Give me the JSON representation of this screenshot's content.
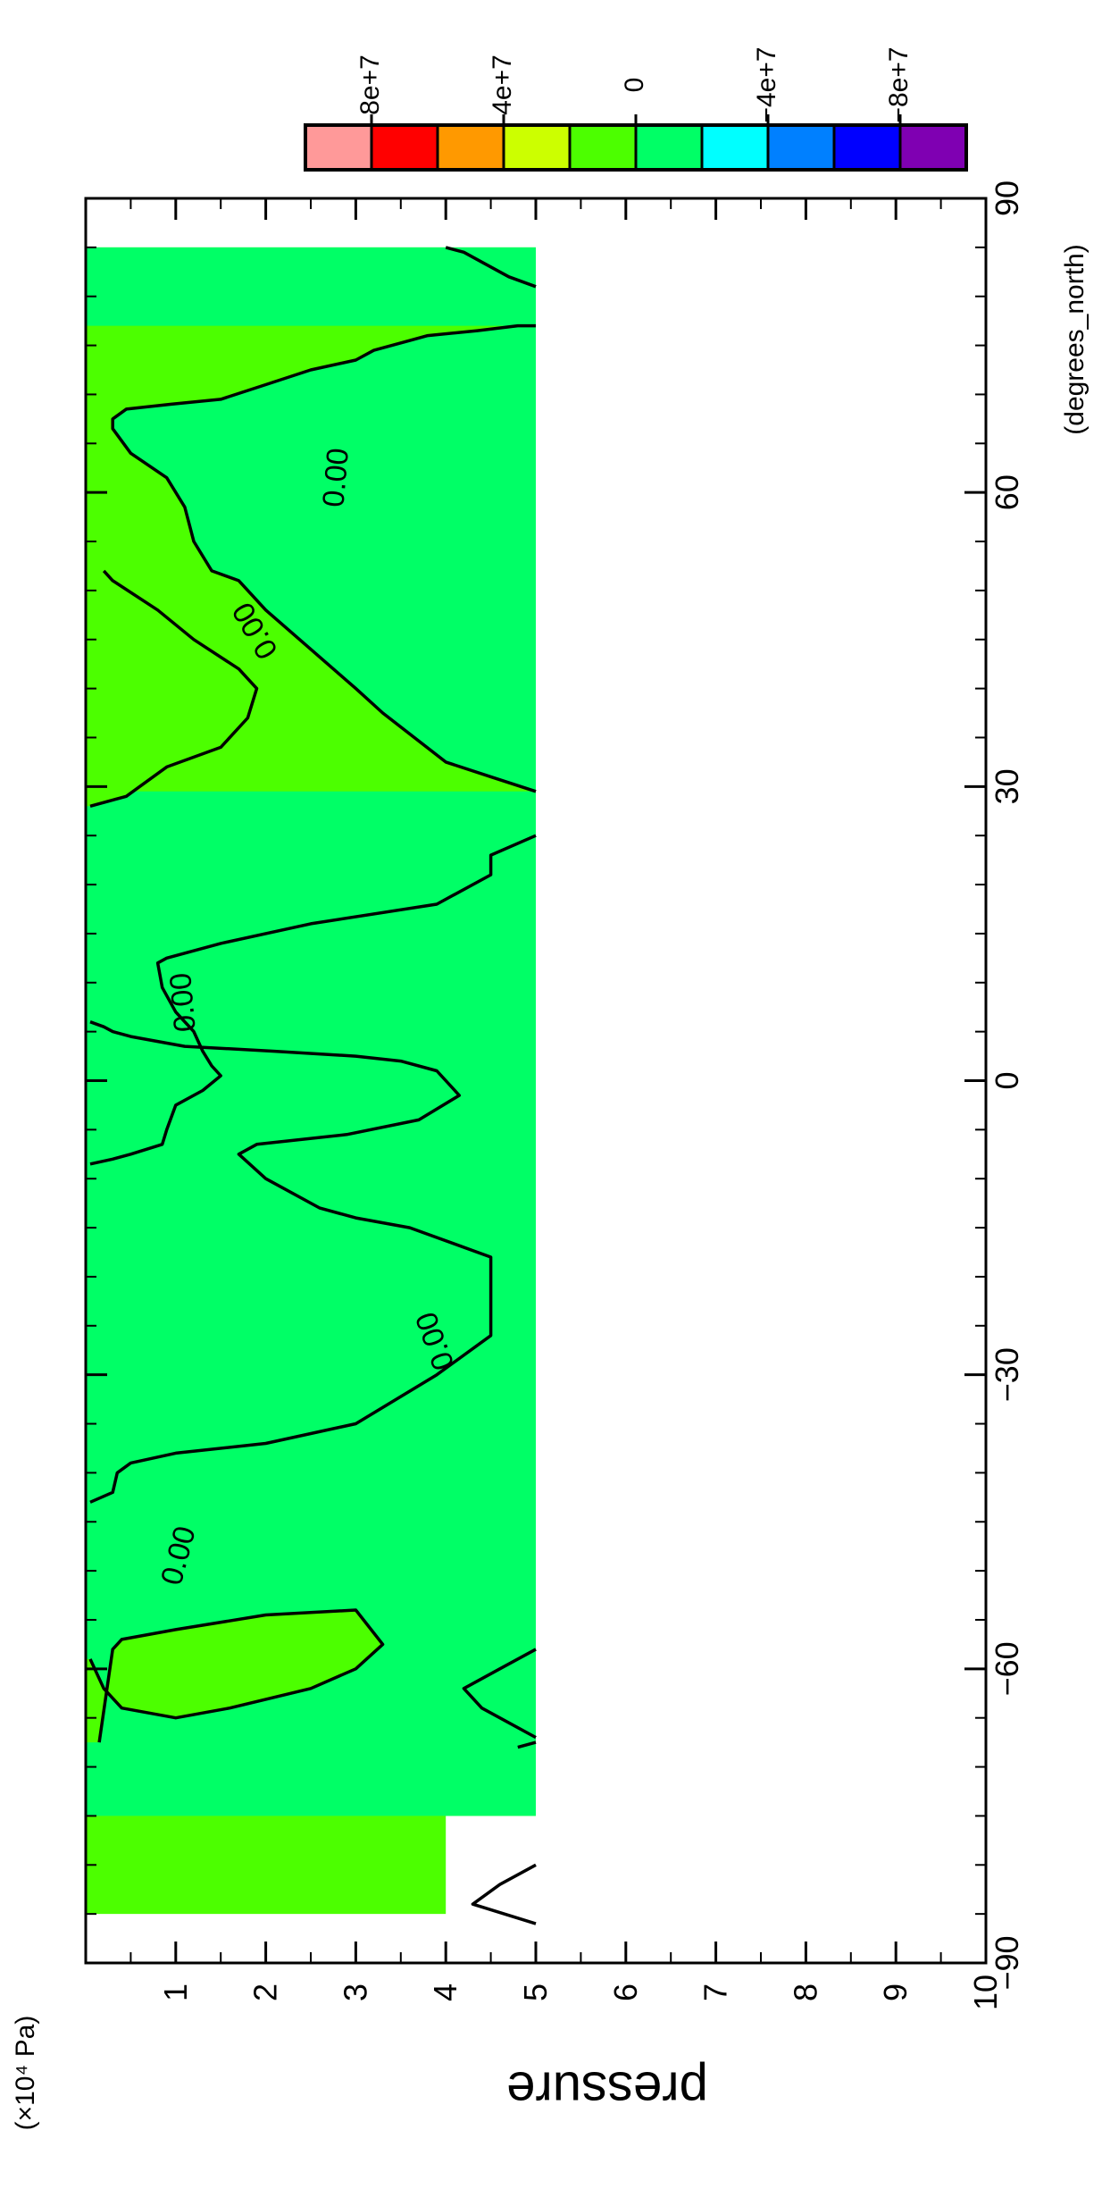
{
  "chart_data": {
    "type": "heatmap",
    "title": "",
    "xlabel": "pressure",
    "x_unit": "(×10⁴ Pa)",
    "ylabel": "(degrees_north)",
    "x_axis": {
      "range": [
        0,
        10
      ],
      "tick_values": [
        1,
        2,
        3,
        4,
        5,
        6,
        7,
        8,
        9,
        10
      ],
      "tick_labels": [
        "1",
        "2",
        "3",
        "4",
        "5",
        "6",
        "7",
        "8",
        "9",
        "10"
      ]
    },
    "y_axis": {
      "range": [
        -90,
        90
      ],
      "tick_values": [
        -90,
        -60,
        -30,
        0,
        30,
        60,
        90
      ],
      "tick_labels": [
        "−90",
        "−60",
        "−30",
        "0",
        "30",
        "60",
        "90"
      ]
    },
    "colorbar": {
      "labels": [
        "8e+7",
        "4e+7",
        "0",
        "−4e+7",
        "−8e+7"
      ],
      "colors": [
        "#ff9999",
        "#ff0000",
        "#ff9900",
        "#ccff00",
        "#4cff00",
        "#00ff66",
        "#00ffff",
        "#0080ff",
        "#0000ff",
        "#7f00b2"
      ]
    },
    "field_colors": {
      "positive_near_zero": "#4cff00",
      "negative_near_zero": "#00ff66"
    },
    "contour_level": "0.00",
    "contour_labels": [
      "0.00",
      "0.00",
      "0.00",
      "0.00",
      "0.00"
    ],
    "data_coverage": [
      {
        "lat_range": [
          -85,
          -75
        ],
        "pressure_range": [
          0,
          4
        ]
      },
      {
        "lat_range": [
          -75,
          85
        ],
        "pressure_range": [
          0,
          5
        ]
      }
    ],
    "zero_contours": [
      {
        "name": "contour-a",
        "points": [
          [
            0.15,
            -67.5
          ],
          [
            0.3,
            -58
          ],
          [
            0.4,
            -57
          ],
          [
            1,
            -56
          ],
          [
            2,
            -54.5
          ],
          [
            3,
            -54
          ],
          [
            3.3,
            -57.5
          ],
          [
            3,
            -60
          ],
          [
            2.5,
            -62
          ],
          [
            1.6,
            -64
          ],
          [
            1,
            -65
          ],
          [
            0.4,
            -64
          ],
          [
            0.2,
            -62
          ],
          [
            0.05,
            -59
          ]
        ]
      },
      {
        "name": "contour-b",
        "points": [
          [
            0.05,
            -43
          ],
          [
            0.3,
            -42
          ],
          [
            0.35,
            -40
          ],
          [
            0.5,
            -39
          ],
          [
            1,
            -38
          ],
          [
            2,
            -37
          ],
          [
            3,
            -35
          ],
          [
            3.9,
            -30
          ],
          [
            4.5,
            -26
          ],
          [
            4.5,
            -18
          ],
          [
            3.6,
            -15
          ],
          [
            3,
            -14
          ],
          [
            2.6,
            -13
          ],
          [
            2,
            -10
          ],
          [
            1.7,
            -7.5
          ],
          [
            1.9,
            -6.5
          ],
          [
            2.9,
            -5.5
          ],
          [
            3.7,
            -4
          ],
          [
            4.15,
            -1.5
          ],
          [
            3.9,
            1
          ],
          [
            3.5,
            2
          ],
          [
            3,
            2.5
          ],
          [
            2.1,
            3
          ],
          [
            1.1,
            3.5
          ],
          [
            0.8,
            4
          ],
          [
            0.5,
            4.5
          ],
          [
            0.3,
            5
          ],
          [
            0.2,
            5.5
          ],
          [
            0.05,
            6
          ]
        ]
      },
      {
        "name": "contour-c",
        "points": [
          [
            0.05,
            -8.5
          ],
          [
            0.3,
            -8
          ],
          [
            0.5,
            -7.5
          ],
          [
            0.85,
            -6.5
          ],
          [
            0.9,
            -5
          ],
          [
            1,
            -2.5
          ],
          [
            1.3,
            -1
          ],
          [
            1.5,
            0.5
          ],
          [
            1.4,
            1.5
          ],
          [
            1.3,
            3
          ],
          [
            1.2,
            5
          ],
          [
            1,
            7
          ],
          [
            0.85,
            9.5
          ],
          [
            0.8,
            12
          ],
          [
            0.9,
            12.5
          ],
          [
            1.5,
            14
          ],
          [
            2.5,
            16
          ],
          [
            3.9,
            18
          ],
          [
            4.5,
            21
          ],
          [
            4.5,
            23
          ],
          [
            5,
            25
          ]
        ]
      },
      {
        "name": "contour-d",
        "points": [
          [
            0.05,
            28
          ],
          [
            0.45,
            29
          ],
          [
            0.6,
            30
          ],
          [
            0.9,
            32
          ],
          [
            1.5,
            34
          ],
          [
            1.8,
            37
          ],
          [
            1.9,
            40
          ],
          [
            1.7,
            42
          ],
          [
            1.2,
            45
          ],
          [
            0.8,
            48
          ],
          [
            0.3,
            51
          ],
          [
            0.2,
            52
          ]
        ]
      },
      {
        "name": "contour-e",
        "points": [
          [
            5,
            -80
          ],
          [
            4.6,
            -82
          ],
          [
            4.3,
            -84
          ],
          [
            5,
            -86
          ]
        ]
      },
      {
        "name": "contour-f",
        "points": [
          [
            5,
            29.5
          ],
          [
            4.5,
            31
          ],
          [
            4,
            32.5
          ],
          [
            3.3,
            37.5
          ],
          [
            3,
            40
          ],
          [
            2.5,
            44
          ],
          [
            2,
            48
          ],
          [
            1.7,
            51
          ],
          [
            1.4,
            52
          ],
          [
            1.2,
            55
          ],
          [
            1.1,
            58.5
          ],
          [
            0.9,
            61.5
          ],
          [
            0.5,
            64
          ],
          [
            0.3,
            66.5
          ],
          [
            0.3,
            67.5
          ],
          [
            0.45,
            68.5
          ],
          [
            0.95,
            69
          ],
          [
            1.5,
            69.5
          ],
          [
            2,
            71
          ],
          [
            2.5,
            72.5
          ],
          [
            3,
            73.5
          ],
          [
            3.2,
            74.5
          ],
          [
            3.8,
            76
          ],
          [
            4.35,
            76.5
          ],
          [
            4.8,
            77
          ],
          [
            5,
            77
          ]
        ]
      },
      {
        "name": "contour-g",
        "points": [
          [
            5,
            81
          ],
          [
            4.7,
            82
          ],
          [
            4.4,
            83.5
          ],
          [
            4.2,
            84.5
          ],
          [
            4,
            85
          ]
        ]
      },
      {
        "name": "contour-h",
        "points": [
          [
            5,
            -58
          ],
          [
            4.6,
            -60
          ],
          [
            4.2,
            -62
          ],
          [
            4.4,
            -64
          ],
          [
            5,
            -67
          ]
        ]
      },
      {
        "name": "contour-i",
        "points": [
          [
            5,
            -67.5
          ],
          [
            4.8,
            -68
          ]
        ]
      }
    ]
  }
}
